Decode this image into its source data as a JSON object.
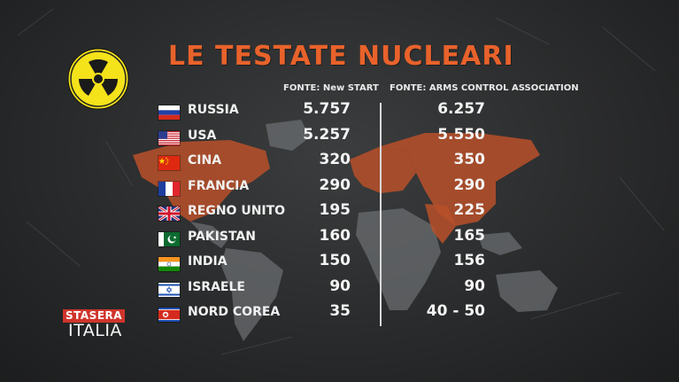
{
  "title": "LE TESTATE NUCLEARI",
  "sources": {
    "new_start": "FONTE: New START",
    "arms_control": "FONTE: ARMS CONTROL ASSOCIATION"
  },
  "rows": [
    {
      "country": "RUSSIA",
      "flag": "russia-flag-icon",
      "new_start": "5.757",
      "arms_control": "6.257"
    },
    {
      "country": "USA",
      "flag": "usa-flag-icon",
      "new_start": "5.257",
      "arms_control": "5.550"
    },
    {
      "country": "CINA",
      "flag": "china-flag-icon",
      "new_start": "320",
      "arms_control": "350"
    },
    {
      "country": "FRANCIA",
      "flag": "france-flag-icon",
      "new_start": "290",
      "arms_control": "290"
    },
    {
      "country": "REGNO UNITO",
      "flag": "uk-flag-icon",
      "new_start": "195",
      "arms_control": "225"
    },
    {
      "country": "PAKISTAN",
      "flag": "pakistan-flag-icon",
      "new_start": "160",
      "arms_control": "165"
    },
    {
      "country": "INDIA",
      "flag": "india-flag-icon",
      "new_start": "150",
      "arms_control": "156"
    },
    {
      "country": "ISRAELE",
      "flag": "israel-flag-icon",
      "new_start": "90",
      "arms_control": "90"
    },
    {
      "country": "NORD COREA",
      "flag": "north-korea-flag-icon",
      "new_start": "35",
      "arms_control": "40 - 50"
    }
  ],
  "logo": {
    "top": "STASERA",
    "bottom": "ITALIA"
  },
  "colors": {
    "title": "#e8622b",
    "map_highlight": "#b8502a",
    "map_base": "#6e7073",
    "radiation_yellow": "#f4e21a",
    "logo_red": "#d0342c"
  },
  "icons": {
    "radiation": "radiation-icon"
  }
}
